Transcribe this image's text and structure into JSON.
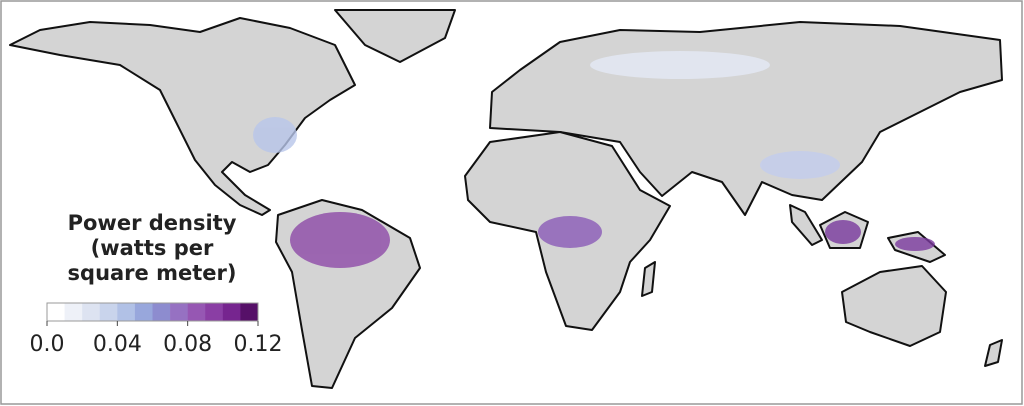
{
  "legend": {
    "title_lines": [
      "Power density",
      "(watts per",
      "square meter)"
    ],
    "colors": [
      "#ffffff",
      "#eef1f8",
      "#dde3f1",
      "#c9d4ec",
      "#b1c1e6",
      "#98a7dc",
      "#8d8ccf",
      "#9671c2",
      "#9657b3",
      "#8a3ea4",
      "#76258f",
      "#561068"
    ],
    "range": [
      0,
      0.12
    ],
    "ticks": [
      {
        "value": 0,
        "label": "0.0"
      },
      0.04,
      0.08,
      0.12
    ]
  }
}
